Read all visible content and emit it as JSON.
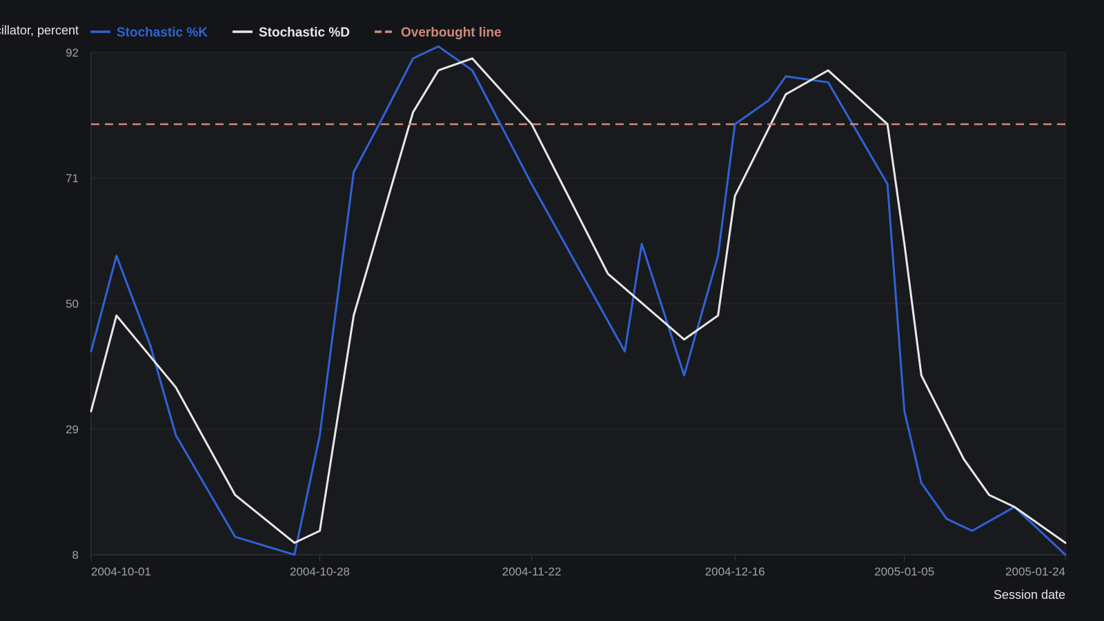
{
  "chart_data": {
    "type": "line",
    "ylabel": "Stochastic oscillator, percent",
    "xlabel": "Session date",
    "ylim": [
      8,
      92
    ],
    "yticks": [
      8,
      29,
      50,
      71,
      92
    ],
    "xlim": [
      "2004-10-01",
      "2005-01-24"
    ],
    "xticks": [
      "2004-10-01",
      "2004-10-28",
      "2004-11-22",
      "2004-12-16",
      "2005-01-05",
      "2005-01-24"
    ],
    "grid": true,
    "legend_position": "top-left",
    "series": [
      {
        "name": "Stochastic %K",
        "color": "#2f62d6",
        "style": "solid",
        "points": [
          [
            "2004-10-01",
            42
          ],
          [
            "2004-10-04",
            58
          ],
          [
            "2004-10-08",
            43
          ],
          [
            "2004-10-11",
            28
          ],
          [
            "2004-10-18",
            11
          ],
          [
            "2004-10-25",
            8
          ],
          [
            "2004-10-28",
            28
          ],
          [
            "2004-11-01",
            72
          ],
          [
            "2004-11-04",
            80
          ],
          [
            "2004-11-08",
            91
          ],
          [
            "2004-11-11",
            93
          ],
          [
            "2004-11-15",
            89
          ],
          [
            "2004-11-22",
            70
          ],
          [
            "2004-12-03",
            42
          ],
          [
            "2004-12-05",
            60
          ],
          [
            "2004-12-10",
            38
          ],
          [
            "2004-12-14",
            58
          ],
          [
            "2004-12-16",
            80
          ],
          [
            "2004-12-20",
            84
          ],
          [
            "2004-12-22",
            88
          ],
          [
            "2004-12-27",
            87
          ],
          [
            "2005-01-03",
            70
          ],
          [
            "2005-01-05",
            32
          ],
          [
            "2005-01-07",
            20
          ],
          [
            "2005-01-10",
            14
          ],
          [
            "2005-01-13",
            12
          ],
          [
            "2005-01-18",
            16
          ],
          [
            "2005-01-24",
            8
          ]
        ]
      },
      {
        "name": "Stochastic %D",
        "color": "#e8e8e8",
        "style": "solid",
        "points": [
          [
            "2004-10-01",
            32
          ],
          [
            "2004-10-04",
            48
          ],
          [
            "2004-10-11",
            36
          ],
          [
            "2004-10-18",
            18
          ],
          [
            "2004-10-25",
            10
          ],
          [
            "2004-10-28",
            12
          ],
          [
            "2004-11-01",
            48
          ],
          [
            "2004-11-08",
            82
          ],
          [
            "2004-11-11",
            89
          ],
          [
            "2004-11-15",
            91
          ],
          [
            "2004-11-22",
            80
          ],
          [
            "2004-12-01",
            55
          ],
          [
            "2004-12-10",
            44
          ],
          [
            "2004-12-14",
            48
          ],
          [
            "2004-12-16",
            68
          ],
          [
            "2004-12-22",
            85
          ],
          [
            "2004-12-27",
            89
          ],
          [
            "2005-01-03",
            80
          ],
          [
            "2005-01-05",
            60
          ],
          [
            "2005-01-07",
            38
          ],
          [
            "2005-01-12",
            24
          ],
          [
            "2005-01-15",
            18
          ],
          [
            "2005-01-18",
            16
          ],
          [
            "2005-01-24",
            10
          ]
        ]
      },
      {
        "name": "Overbought line",
        "color": "#d08a77",
        "style": "dashed",
        "points": [
          [
            "2004-10-01",
            80
          ],
          [
            "2005-01-24",
            80
          ]
        ]
      }
    ]
  },
  "colors": {
    "background": "#141518",
    "plot_background": "#191a1e",
    "grid": "#2a2c31",
    "axis": "#3a3c42"
  }
}
